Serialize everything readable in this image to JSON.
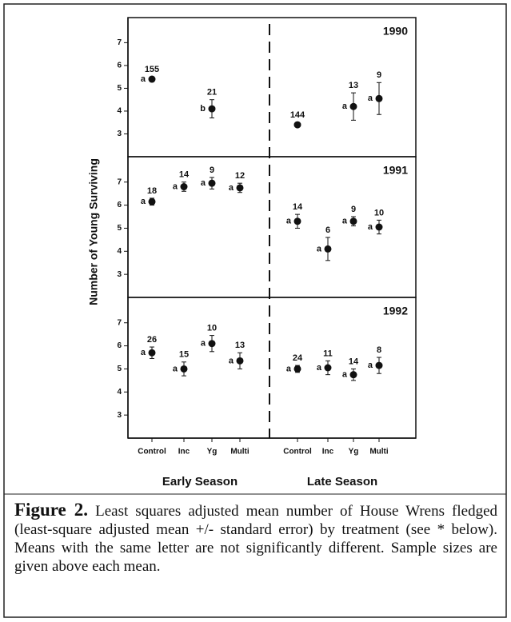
{
  "ylabel": "Number of Young Surviving",
  "categories": [
    "Control",
    "Inc",
    "Yg",
    "Multi",
    "Control",
    "Inc",
    "Yg",
    "Multi"
  ],
  "groups": [
    "Early Season",
    "Late Season"
  ],
  "caption": {
    "label": "Figure 2.",
    "text": "Least squares adjusted mean number of House Wrens fledged (least-square adjusted mean +/- standard error) by treatment (see * below). Means with the same letter are not significantly different. Sample sizes are given above each mean."
  },
  "chart_data": [
    {
      "type": "scatter",
      "title": "1990",
      "values": [
        5.4,
        null,
        4.1,
        null,
        3.4,
        null,
        4.2,
        4.55
      ],
      "errors": [
        0.1,
        null,
        0.4,
        null,
        0.1,
        null,
        0.6,
        0.7
      ],
      "sample_sizes": [
        "155",
        null,
        "21",
        null,
        "144",
        null,
        "13",
        "9"
      ],
      "letters": [
        "a",
        null,
        "b",
        null,
        null,
        null,
        "a",
        "a"
      ],
      "ylim": [
        2,
        8.1
      ],
      "yticks": [
        3,
        4,
        5,
        6,
        7
      ]
    },
    {
      "type": "scatter",
      "title": "1991",
      "values": [
        6.15,
        6.8,
        6.95,
        6.75,
        5.3,
        4.1,
        5.3,
        5.05
      ],
      "errors": [
        0.15,
        0.2,
        0.25,
        0.2,
        0.3,
        0.5,
        0.2,
        0.3
      ],
      "sample_sizes": [
        "18",
        "14",
        "9",
        "12",
        "14",
        "6",
        "9",
        "10"
      ],
      "letters": [
        "a",
        "a",
        "a",
        "a",
        "a",
        "a",
        "a",
        "a"
      ],
      "ylim": [
        2,
        8.1
      ],
      "yticks": [
        3,
        4,
        5,
        6,
        7
      ]
    },
    {
      "type": "scatter",
      "title": "1992",
      "values": [
        5.7,
        5.0,
        6.1,
        5.35,
        5.0,
        5.05,
        4.75,
        5.15
      ],
      "errors": [
        0.25,
        0.3,
        0.35,
        0.35,
        0.15,
        0.3,
        0.25,
        0.35
      ],
      "sample_sizes": [
        "26",
        "15",
        "10",
        "13",
        "24",
        "11",
        "14",
        "8"
      ],
      "letters": [
        "a",
        "a",
        "a",
        "a",
        "a",
        "a",
        "a",
        "a"
      ],
      "ylim": [
        2,
        8.1
      ],
      "yticks": [
        3,
        4,
        5,
        6,
        7
      ]
    }
  ]
}
